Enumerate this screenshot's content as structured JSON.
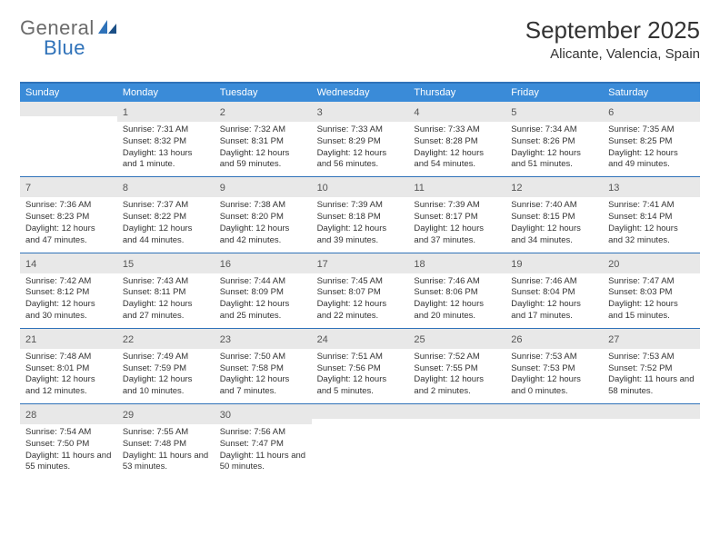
{
  "logo": {
    "text1": "General",
    "text2": "Blue"
  },
  "title": "September 2025",
  "location": "Alicante, Valencia, Spain",
  "colors": {
    "brand_blue": "#2f72b9",
    "header_blue": "#3a8bd8",
    "logo_gray": "#6b6b6b",
    "daybar_gray": "#e8e8e8",
    "text": "#333333",
    "bg": "#ffffff"
  },
  "weekdays": [
    "Sunday",
    "Monday",
    "Tuesday",
    "Wednesday",
    "Thursday",
    "Friday",
    "Saturday"
  ],
  "weeks": [
    [
      {
        "blank": true
      },
      {
        "n": "1",
        "sr": "Sunrise: 7:31 AM",
        "ss": "Sunset: 8:32 PM",
        "dl": "Daylight: 13 hours and 1 minute."
      },
      {
        "n": "2",
        "sr": "Sunrise: 7:32 AM",
        "ss": "Sunset: 8:31 PM",
        "dl": "Daylight: 12 hours and 59 minutes."
      },
      {
        "n": "3",
        "sr": "Sunrise: 7:33 AM",
        "ss": "Sunset: 8:29 PM",
        "dl": "Daylight: 12 hours and 56 minutes."
      },
      {
        "n": "4",
        "sr": "Sunrise: 7:33 AM",
        "ss": "Sunset: 8:28 PM",
        "dl": "Daylight: 12 hours and 54 minutes."
      },
      {
        "n": "5",
        "sr": "Sunrise: 7:34 AM",
        "ss": "Sunset: 8:26 PM",
        "dl": "Daylight: 12 hours and 51 minutes."
      },
      {
        "n": "6",
        "sr": "Sunrise: 7:35 AM",
        "ss": "Sunset: 8:25 PM",
        "dl": "Daylight: 12 hours and 49 minutes."
      }
    ],
    [
      {
        "n": "7",
        "sr": "Sunrise: 7:36 AM",
        "ss": "Sunset: 8:23 PM",
        "dl": "Daylight: 12 hours and 47 minutes."
      },
      {
        "n": "8",
        "sr": "Sunrise: 7:37 AM",
        "ss": "Sunset: 8:22 PM",
        "dl": "Daylight: 12 hours and 44 minutes."
      },
      {
        "n": "9",
        "sr": "Sunrise: 7:38 AM",
        "ss": "Sunset: 8:20 PM",
        "dl": "Daylight: 12 hours and 42 minutes."
      },
      {
        "n": "10",
        "sr": "Sunrise: 7:39 AM",
        "ss": "Sunset: 8:18 PM",
        "dl": "Daylight: 12 hours and 39 minutes."
      },
      {
        "n": "11",
        "sr": "Sunrise: 7:39 AM",
        "ss": "Sunset: 8:17 PM",
        "dl": "Daylight: 12 hours and 37 minutes."
      },
      {
        "n": "12",
        "sr": "Sunrise: 7:40 AM",
        "ss": "Sunset: 8:15 PM",
        "dl": "Daylight: 12 hours and 34 minutes."
      },
      {
        "n": "13",
        "sr": "Sunrise: 7:41 AM",
        "ss": "Sunset: 8:14 PM",
        "dl": "Daylight: 12 hours and 32 minutes."
      }
    ],
    [
      {
        "n": "14",
        "sr": "Sunrise: 7:42 AM",
        "ss": "Sunset: 8:12 PM",
        "dl": "Daylight: 12 hours and 30 minutes."
      },
      {
        "n": "15",
        "sr": "Sunrise: 7:43 AM",
        "ss": "Sunset: 8:11 PM",
        "dl": "Daylight: 12 hours and 27 minutes."
      },
      {
        "n": "16",
        "sr": "Sunrise: 7:44 AM",
        "ss": "Sunset: 8:09 PM",
        "dl": "Daylight: 12 hours and 25 minutes."
      },
      {
        "n": "17",
        "sr": "Sunrise: 7:45 AM",
        "ss": "Sunset: 8:07 PM",
        "dl": "Daylight: 12 hours and 22 minutes."
      },
      {
        "n": "18",
        "sr": "Sunrise: 7:46 AM",
        "ss": "Sunset: 8:06 PM",
        "dl": "Daylight: 12 hours and 20 minutes."
      },
      {
        "n": "19",
        "sr": "Sunrise: 7:46 AM",
        "ss": "Sunset: 8:04 PM",
        "dl": "Daylight: 12 hours and 17 minutes."
      },
      {
        "n": "20",
        "sr": "Sunrise: 7:47 AM",
        "ss": "Sunset: 8:03 PM",
        "dl": "Daylight: 12 hours and 15 minutes."
      }
    ],
    [
      {
        "n": "21",
        "sr": "Sunrise: 7:48 AM",
        "ss": "Sunset: 8:01 PM",
        "dl": "Daylight: 12 hours and 12 minutes."
      },
      {
        "n": "22",
        "sr": "Sunrise: 7:49 AM",
        "ss": "Sunset: 7:59 PM",
        "dl": "Daylight: 12 hours and 10 minutes."
      },
      {
        "n": "23",
        "sr": "Sunrise: 7:50 AM",
        "ss": "Sunset: 7:58 PM",
        "dl": "Daylight: 12 hours and 7 minutes."
      },
      {
        "n": "24",
        "sr": "Sunrise: 7:51 AM",
        "ss": "Sunset: 7:56 PM",
        "dl": "Daylight: 12 hours and 5 minutes."
      },
      {
        "n": "25",
        "sr": "Sunrise: 7:52 AM",
        "ss": "Sunset: 7:55 PM",
        "dl": "Daylight: 12 hours and 2 minutes."
      },
      {
        "n": "26",
        "sr": "Sunrise: 7:53 AM",
        "ss": "Sunset: 7:53 PM",
        "dl": "Daylight: 12 hours and 0 minutes."
      },
      {
        "n": "27",
        "sr": "Sunrise: 7:53 AM",
        "ss": "Sunset: 7:52 PM",
        "dl": "Daylight: 11 hours and 58 minutes."
      }
    ],
    [
      {
        "n": "28",
        "sr": "Sunrise: 7:54 AM",
        "ss": "Sunset: 7:50 PM",
        "dl": "Daylight: 11 hours and 55 minutes."
      },
      {
        "n": "29",
        "sr": "Sunrise: 7:55 AM",
        "ss": "Sunset: 7:48 PM",
        "dl": "Daylight: 11 hours and 53 minutes."
      },
      {
        "n": "30",
        "sr": "Sunrise: 7:56 AM",
        "ss": "Sunset: 7:47 PM",
        "dl": "Daylight: 11 hours and 50 minutes."
      },
      {
        "blank": true
      },
      {
        "blank": true
      },
      {
        "blank": true
      },
      {
        "blank": true
      }
    ]
  ]
}
